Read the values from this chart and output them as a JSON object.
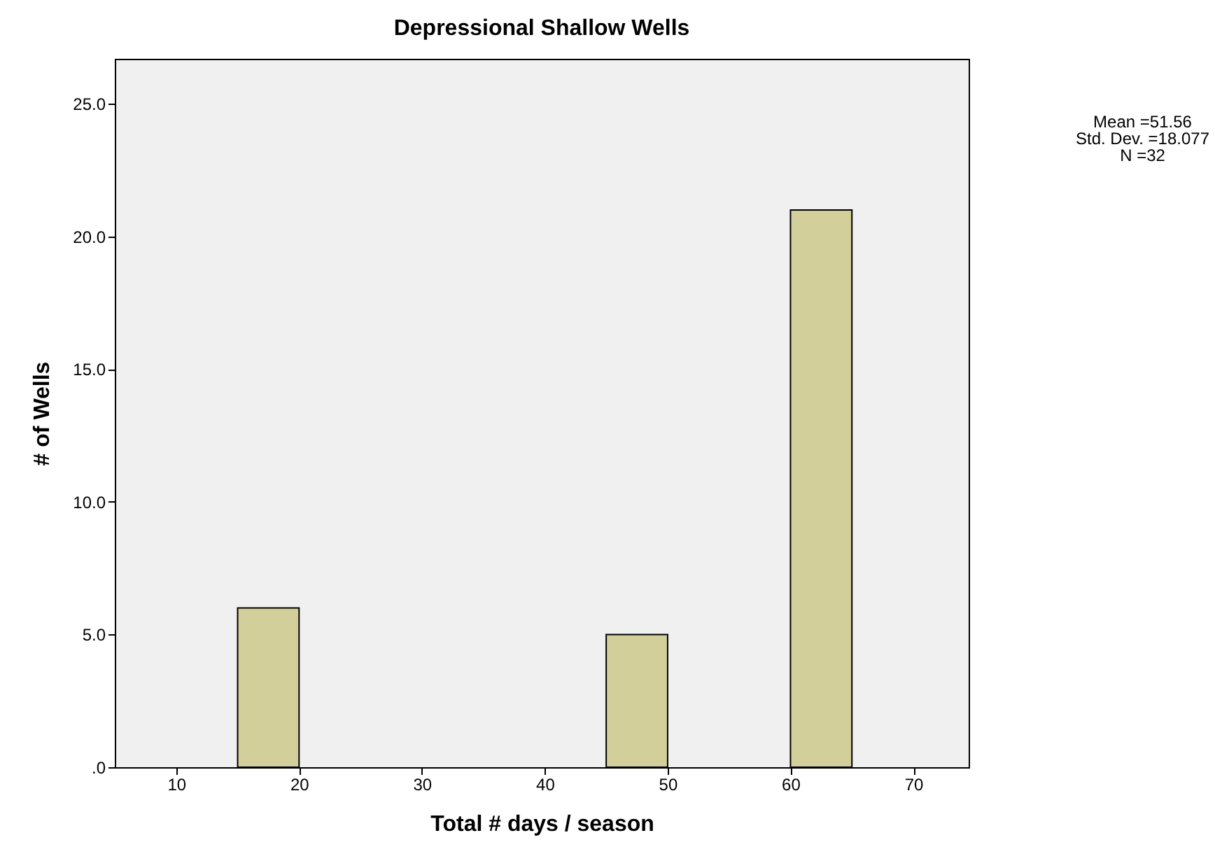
{
  "chart_data": {
    "type": "histogram",
    "title": "Depressional Shallow Wells",
    "xlabel": "Total # days / season",
    "ylabel": "# of Wells",
    "bins": [
      15,
      20,
      25,
      30,
      35,
      40,
      45,
      50,
      55,
      60,
      65
    ],
    "values": [
      6,
      0,
      0,
      0,
      0,
      0,
      5,
      0,
      0,
      21
    ],
    "color": "#d3cf9b",
    "xlim": [
      5,
      74.5
    ],
    "xticks": [
      10,
      20,
      30,
      40,
      50,
      60,
      70
    ],
    "ylim": [
      0,
      26.7
    ],
    "yticks": [
      {
        "value": 0,
        "label": ".0"
      },
      {
        "value": 5,
        "label": "5.0"
      },
      {
        "value": 10,
        "label": "10.0"
      },
      {
        "value": 15,
        "label": "15.0"
      },
      {
        "value": 20,
        "label": "20.0"
      },
      {
        "value": 25,
        "label": "25.0"
      }
    ],
    "grid": false,
    "annotations": [
      "Mean =51.56",
      "Std. Dev. =18.077",
      "N =32"
    ]
  }
}
